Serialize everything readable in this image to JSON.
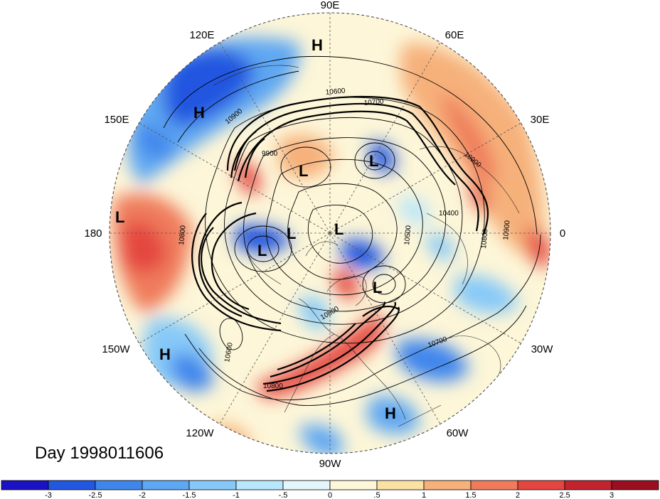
{
  "title": "Day 1998011606",
  "longitude_labels": [
    {
      "id": "lon-90e",
      "text": "90E"
    },
    {
      "id": "lon-60e",
      "text": "60E"
    },
    {
      "id": "lon-30e",
      "text": "30E"
    },
    {
      "id": "lon-0",
      "text": "0"
    },
    {
      "id": "lon-30w",
      "text": "30W"
    },
    {
      "id": "lon-60w",
      "text": "60W"
    },
    {
      "id": "lon-90w",
      "text": "90W"
    },
    {
      "id": "lon-120w",
      "text": "120W"
    },
    {
      "id": "lon-150w",
      "text": "150W"
    },
    {
      "id": "lon-180",
      "text": "180"
    },
    {
      "id": "lon-150e",
      "text": "150E"
    },
    {
      "id": "lon-120e",
      "text": "120E"
    }
  ],
  "pressure_systems": [
    {
      "type": "H",
      "region": "siberia-north"
    },
    {
      "type": "H",
      "region": "east-asia"
    },
    {
      "type": "L",
      "region": "north-pacific"
    },
    {
      "type": "L",
      "region": "kara-sea"
    },
    {
      "type": "L",
      "region": "east-siberian-arctic"
    },
    {
      "type": "L",
      "region": "arctic-ocean"
    },
    {
      "type": "L",
      "region": "beaufort"
    },
    {
      "type": "L",
      "region": "north-pole"
    },
    {
      "type": "L",
      "region": "baffin"
    },
    {
      "type": "H",
      "region": "northeast-pacific"
    },
    {
      "type": "H",
      "region": "subtropical-atlantic"
    }
  ],
  "contour_labels": [
    "10600",
    "10700",
    "10900",
    "9900",
    "10900",
    "10400",
    "10800",
    "10900",
    "10800",
    "10500",
    "10600",
    "10700",
    "10800",
    "10800"
  ],
  "colorbar": {
    "ticks": [
      "-3",
      "-2.5",
      "-2",
      "-1.5",
      "-1",
      "-.5",
      "0",
      ".5",
      "1",
      "1.5",
      "2",
      "2.5",
      "3"
    ],
    "colors": [
      "#1c12c4",
      "#2257e0",
      "#3f86ec",
      "#5ea7f2",
      "#86c9f8",
      "#b8e6fb",
      "#e4f6fb",
      "#fdf6d8",
      "#fbe1a4",
      "#f6b07a",
      "#ef7b5c",
      "#e4463f",
      "#c3232e",
      "#9b0e1f"
    ]
  },
  "colors": {
    "contour": "#000000",
    "grid": "#555555"
  }
}
